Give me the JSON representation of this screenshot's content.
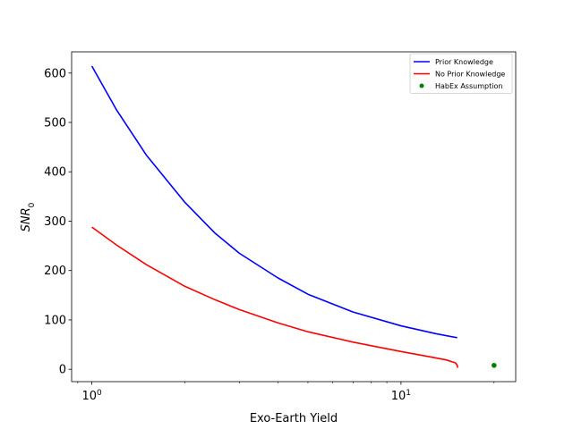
{
  "chart_data": {
    "type": "line",
    "xlabel": "Exo-Earth Yield",
    "ylabel_main": "SNR",
    "ylabel_sub": "0",
    "xscale": "log",
    "xlim": [
      0.86,
      23.5
    ],
    "ylim": [
      -25,
      643
    ],
    "x_ticks": [
      {
        "value": 1,
        "base": "10",
        "exp": "0"
      },
      {
        "value": 10,
        "base": "10",
        "exp": "1"
      }
    ],
    "y_ticks": [
      0,
      100,
      200,
      300,
      400,
      500,
      600
    ],
    "grid": false,
    "legend_position": "top-right",
    "series": [
      {
        "name": "Prior Knowledge",
        "kind": "line",
        "color": "#0000ff",
        "points": [
          [
            1,
            614
          ],
          [
            1.2,
            526
          ],
          [
            1.5,
            434
          ],
          [
            2,
            338
          ],
          [
            2.5,
            276
          ],
          [
            3,
            235
          ],
          [
            4,
            185
          ],
          [
            5,
            152
          ],
          [
            7,
            116
          ],
          [
            10,
            88
          ],
          [
            13,
            72
          ],
          [
            15.2,
            64
          ]
        ]
      },
      {
        "name": "No Prior Knowledge",
        "kind": "line",
        "color": "#ff0000",
        "points": [
          [
            1,
            288
          ],
          [
            1.2,
            252
          ],
          [
            1.5,
            212
          ],
          [
            2,
            168
          ],
          [
            2.5,
            141
          ],
          [
            3,
            121
          ],
          [
            4,
            94
          ],
          [
            5,
            76
          ],
          [
            7,
            55
          ],
          [
            10,
            36
          ],
          [
            12,
            27
          ],
          [
            14,
            19
          ],
          [
            15,
            13
          ],
          [
            15.2,
            8
          ],
          [
            15.25,
            3
          ]
        ]
      },
      {
        "name": "HabEx Assumption",
        "kind": "scatter",
        "color": "#008000",
        "points": [
          [
            20,
            8
          ]
        ]
      }
    ]
  }
}
